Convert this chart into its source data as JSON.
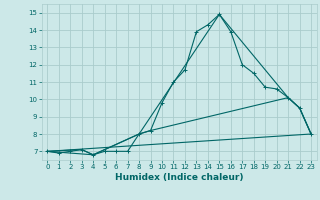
{
  "xlabel": "Humidex (Indice chaleur)",
  "ylabel": "",
  "bg_color": "#cce8e8",
  "grid_color": "#aacccc",
  "line_color": "#006666",
  "xlim": [
    -0.5,
    23.5
  ],
  "ylim": [
    6.5,
    15.5
  ],
  "xticks": [
    0,
    1,
    2,
    3,
    4,
    5,
    6,
    7,
    8,
    9,
    10,
    11,
    12,
    13,
    14,
    15,
    16,
    17,
    18,
    19,
    20,
    21,
    22,
    23
  ],
  "yticks": [
    7,
    8,
    9,
    10,
    11,
    12,
    13,
    14,
    15
  ],
  "line1_x": [
    0,
    1,
    2,
    3,
    4,
    5,
    6,
    7,
    8,
    9,
    10,
    11,
    12,
    13,
    14,
    15,
    16,
    17,
    18,
    19,
    20,
    21,
    22,
    23
  ],
  "line1_y": [
    7.0,
    6.9,
    7.0,
    7.1,
    6.8,
    7.0,
    7.0,
    7.0,
    8.0,
    8.2,
    9.8,
    11.0,
    11.7,
    13.9,
    14.3,
    14.9,
    13.9,
    12.0,
    11.5,
    10.7,
    10.6,
    10.1,
    9.5,
    8.0
  ],
  "line2_x": [
    0,
    3,
    4,
    8,
    9,
    21,
    22,
    23
  ],
  "line2_y": [
    7.0,
    7.1,
    6.8,
    8.0,
    8.2,
    10.1,
    9.5,
    8.0
  ],
  "line3_x": [
    0,
    23
  ],
  "line3_y": [
    7.0,
    8.0
  ],
  "line4_x": [
    0,
    4,
    8,
    15,
    21,
    22,
    23
  ],
  "line4_y": [
    7.0,
    6.8,
    8.0,
    14.9,
    10.1,
    9.5,
    8.0
  ]
}
